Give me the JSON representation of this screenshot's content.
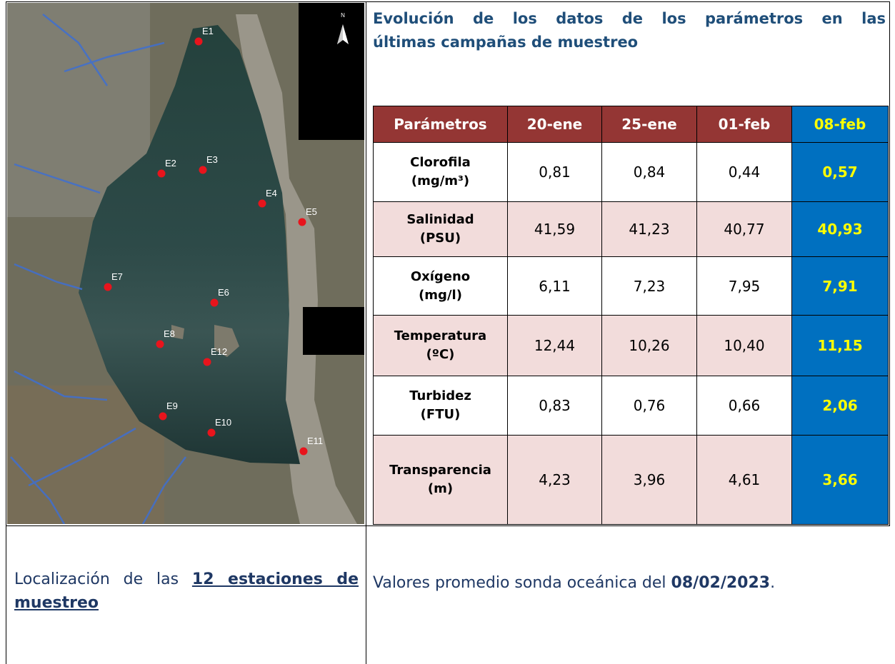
{
  "title": [
    "Evolución de los datos de los parámetros en las",
    "últimas campañas de muestreo"
  ],
  "map": {
    "north": "N",
    "stations": [
      "E1",
      "E2",
      "E3",
      "E4",
      "E5",
      "E6",
      "E7",
      "E8",
      "E12",
      "E9",
      "E10",
      "E11"
    ]
  },
  "table": {
    "header": [
      "Parámetros",
      "20-ene",
      "25-ene",
      "01-feb",
      "08-feb"
    ],
    "rows": [
      {
        "name": "Clorofila",
        "unit": "(mg/m³)",
        "values": [
          "0,81",
          "0,84",
          "0,44",
          "0,57"
        ]
      },
      {
        "name": "Salinidad",
        "unit": "(PSU)",
        "values": [
          "41,59",
          "41,23",
          "40,77",
          "40,93"
        ]
      },
      {
        "name": "Oxígeno",
        "unit": "(mg/l)",
        "values": [
          "6,11",
          "7,23",
          "7,95",
          "7,91"
        ]
      },
      {
        "name": "Temperatura",
        "unit": "(ºC)",
        "values": [
          "12,44",
          "10,26",
          "10,40",
          "11,15"
        ]
      },
      {
        "name": "Turbidez",
        "unit": "(FTU)",
        "values": [
          "0,83",
          "0,76",
          "0,66",
          "2,06"
        ]
      },
      {
        "name": "Transparencia",
        "unit": "(m)",
        "values": [
          "4,23",
          "3,96",
          "4,61",
          "3,66"
        ]
      }
    ]
  },
  "caption_left": {
    "text": "Localización de las ",
    "emphasis": "12 estaciones de muestreo"
  },
  "caption_right": {
    "text": "Valores promedio sonda oceánica del ",
    "date": "08/02/2023",
    "end": "."
  }
}
